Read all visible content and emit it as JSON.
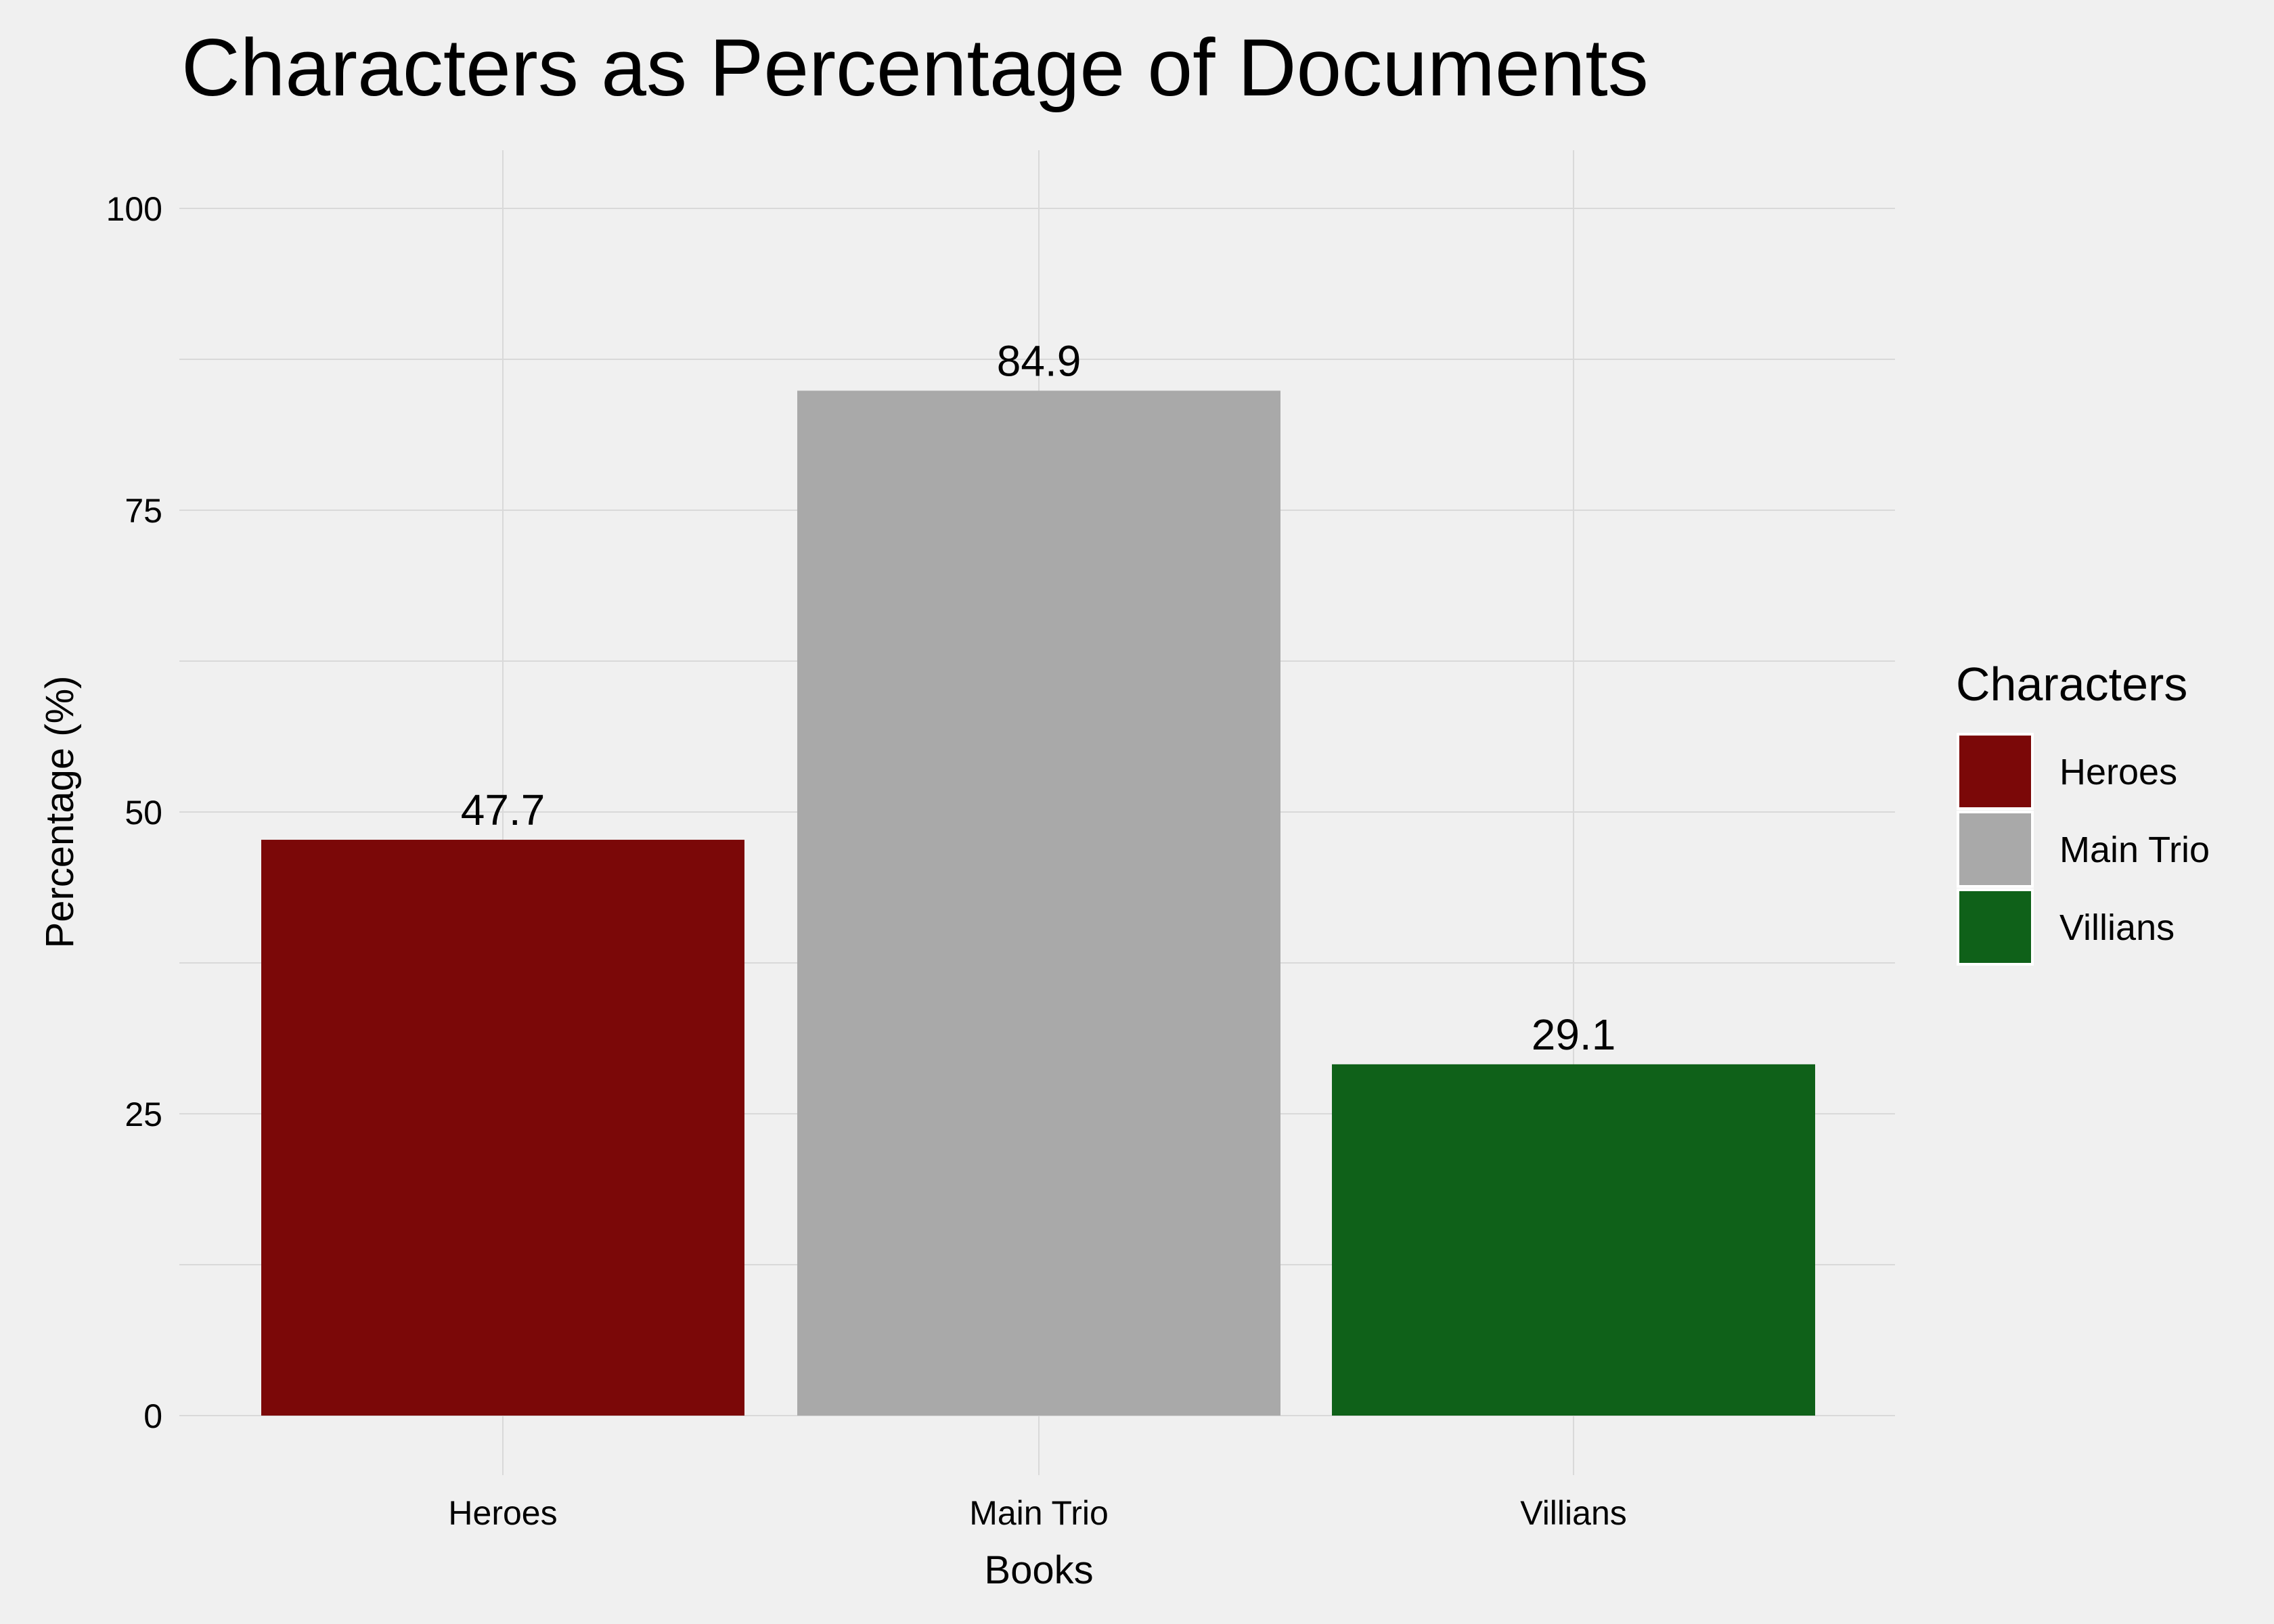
{
  "chart_data": {
    "type": "bar",
    "title": "Characters as Percentage of Documents",
    "xlabel": "Books",
    "ylabel": "Percentage (%)",
    "categories": [
      "Heroes",
      "Main Trio",
      "Villians"
    ],
    "values": [
      47.7,
      84.9,
      29.1
    ],
    "data_labels": [
      "47.7",
      "84.9",
      "29.1"
    ],
    "colors": [
      "#7b0808",
      "#a9a9a9",
      "#0f6119"
    ],
    "ylim": [
      0,
      100
    ],
    "yticks": [
      0,
      25,
      50,
      75,
      100
    ],
    "grid": true,
    "legend": {
      "title": "Characters",
      "position": "right",
      "entries": [
        "Heroes",
        "Main Trio",
        "Villians"
      ]
    }
  }
}
